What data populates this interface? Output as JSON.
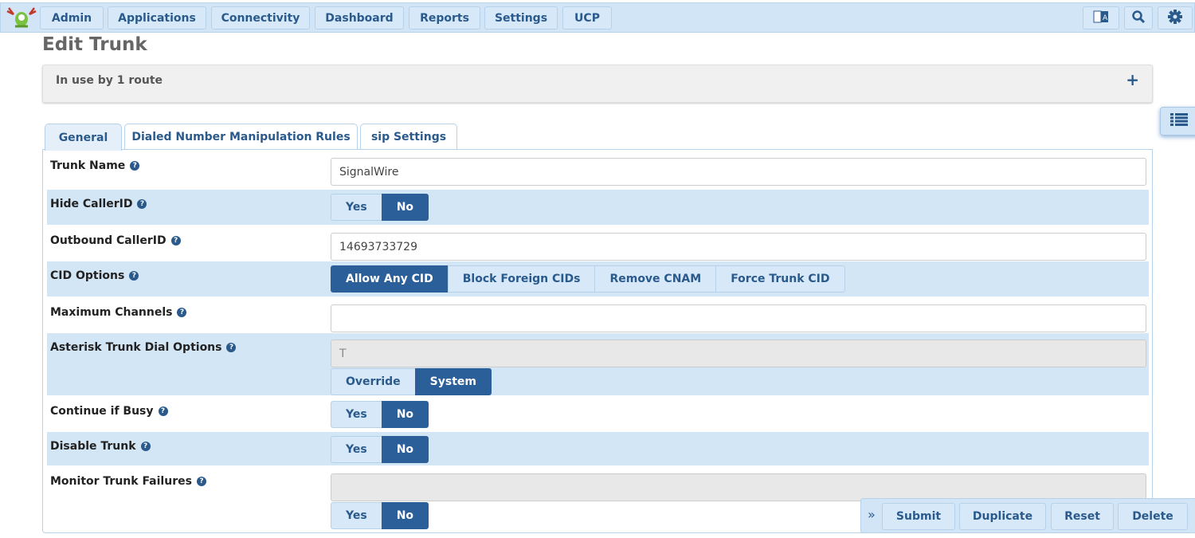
{
  "nav": {
    "items": [
      "Admin",
      "Applications",
      "Connectivity",
      "Dashboard",
      "Reports",
      "Settings",
      "UCP"
    ],
    "icons": [
      "translate-icon",
      "search-icon",
      "gear-icon"
    ]
  },
  "page": {
    "title": "Edit Trunk",
    "in_use": "In use by 1 route",
    "expand": "+"
  },
  "tabs": [
    {
      "label": "General",
      "active": true
    },
    {
      "label": "Dialed Number Manipulation Rules"
    },
    {
      "label": "sip Settings"
    }
  ],
  "form": [
    {
      "label": "Trunk Name",
      "type": "input",
      "value": "SignalWire"
    },
    {
      "label": "Hide CallerID",
      "type": "toggle",
      "options": [
        "Yes",
        "No"
      ],
      "selected": "No"
    },
    {
      "label": "Outbound CallerID",
      "type": "input",
      "value": "14693733729"
    },
    {
      "label": "CID Options",
      "type": "toggle",
      "options": [
        "Allow Any CID",
        "Block Foreign CIDs",
        "Remove CNAM",
        "Force Trunk CID"
      ],
      "selected": "Allow Any CID"
    },
    {
      "label": "Maximum Channels",
      "type": "input",
      "value": ""
    },
    {
      "label": "Asterisk Trunk Dial Options",
      "type": "input+toggle",
      "value": "T",
      "disabled": true,
      "options": [
        "Override",
        "System"
      ],
      "selected": "System"
    },
    {
      "label": "Continue if Busy",
      "type": "toggle",
      "options": [
        "Yes",
        "No"
      ],
      "selected": "No"
    },
    {
      "label": "Disable Trunk",
      "type": "toggle",
      "options": [
        "Yes",
        "No"
      ],
      "selected": "No"
    },
    {
      "label": "Monitor Trunk Failures",
      "type": "input+toggle",
      "value": "",
      "disabled": true,
      "options": [
        "Yes",
        "No"
      ],
      "selected": "No"
    }
  ],
  "actions": {
    "expand": "»",
    "buttons": [
      "Submit",
      "Duplicate",
      "Reset",
      "Delete"
    ]
  },
  "colors": {
    "accent": "#2b5f99",
    "nav_bg": "#d2e5f6",
    "row_alt": "#d3e6f5"
  }
}
